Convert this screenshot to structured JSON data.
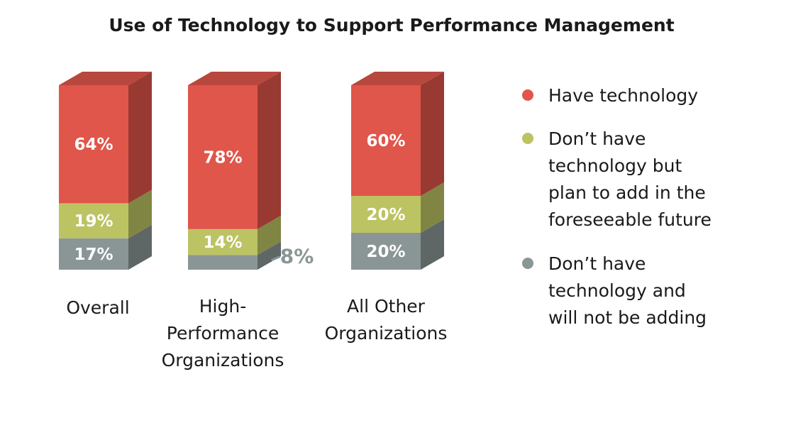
{
  "chart_data": {
    "type": "bar",
    "stacked": true,
    "title": "Use of Technology to Support Performance Management",
    "categories": [
      [
        "Overall"
      ],
      [
        "High-",
        "Performance",
        "Organizations"
      ],
      [
        "All Other",
        "Organizations"
      ]
    ],
    "series": [
      {
        "name": "Don’t have technology and will not be adding",
        "legend_lines": [
          "Don’t have",
          "technology and",
          "will not be adding"
        ],
        "color": "#8a9696",
        "values": [
          17,
          8,
          20
        ],
        "labels": [
          "17%",
          "8%",
          "20%"
        ]
      },
      {
        "name": "Don’t have technology but plan to add in the foreseeable future",
        "legend_lines": [
          "Don’t have",
          "technology but",
          "plan to add in the",
          "foreseeable future"
        ],
        "color": "#bcc363",
        "values": [
          19,
          14,
          20
        ],
        "labels": [
          "19%",
          "14%",
          "20%"
        ]
      },
      {
        "name": "Have technology",
        "legend_lines": [
          "Have technology"
        ],
        "color": "#e0564a",
        "values": [
          64,
          78,
          60
        ],
        "labels": [
          "64%",
          "78%",
          "60%"
        ]
      }
    ],
    "ylim": [
      0,
      100
    ],
    "legend_position": "right",
    "grid": false
  }
}
